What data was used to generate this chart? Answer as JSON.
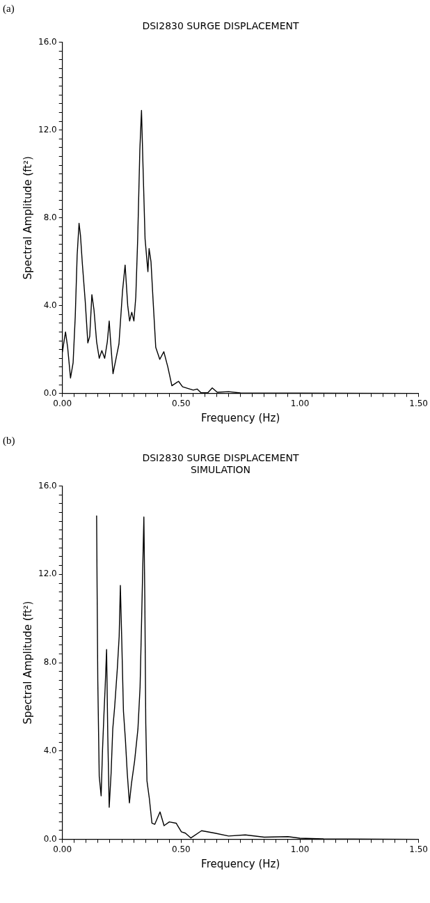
{
  "chart_data": [
    {
      "type": "line",
      "title": "DSI2830 SURGE DISPLACEMENT",
      "xlabel": "Frequency (Hz)",
      "ylabel": "Spectral Amplitude (ft²)",
      "annotations": [
        "(a)"
      ],
      "x": [
        0,
        0.013,
        0.022,
        0.034,
        0.045,
        0.054,
        0.062,
        0.07,
        0.076,
        0.084,
        0.096,
        0.107,
        0.115,
        0.124,
        0.133,
        0.144,
        0.155,
        0.166,
        0.178,
        0.189,
        0.197,
        0.202,
        0.213,
        0.225,
        0.238,
        0.253,
        0.264,
        0.275,
        0.283,
        0.292,
        0.301,
        0.309,
        0.317,
        0.326,
        0.333,
        0.339,
        0.348,
        0.36,
        0.365,
        0.373,
        0.382,
        0.393,
        0.41,
        0.427,
        0.444,
        0.461,
        0.489,
        0.506,
        0.551,
        0.567,
        0.584,
        0.612,
        0.631,
        0.652,
        0.7,
        0.75,
        1.0,
        1.5
      ],
      "series": [
        {
          "color": "#000000",
          "values": [
            1.9,
            2.8,
            2.1,
            0.7,
            1.4,
            3.5,
            6.3,
            7.75,
            7.2,
            5.9,
            4.2,
            2.3,
            2.6,
            4.5,
            3.8,
            2.35,
            1.6,
            1.95,
            1.6,
            2.35,
            3.3,
            2.5,
            0.9,
            1.55,
            2.25,
            4.65,
            5.85,
            4.0,
            3.3,
            3.7,
            3.3,
            4.4,
            7.05,
            11.1,
            12.9,
            10.5,
            7.05,
            5.55,
            6.6,
            6.0,
            4.2,
            2.1,
            1.55,
            1.9,
            1.2,
            0.35,
            0.55,
            0.3,
            0.15,
            0.2,
            0.03,
            0.03,
            0.25,
            0.05,
            0.08,
            0.02,
            0.01,
            0
          ]
        }
      ],
      "xlim": [
        0,
        1.5
      ],
      "ylim": [
        0,
        16
      ],
      "xticks": [
        {
          "value": 0,
          "label": "0.00"
        },
        {
          "value": 0.05,
          "label": null
        },
        {
          "value": 0.1,
          "label": null
        },
        {
          "value": 0.15,
          "label": null
        },
        {
          "value": 0.2,
          "label": null
        },
        {
          "value": 0.25,
          "label": null
        },
        {
          "value": 0.3,
          "label": null
        },
        {
          "value": 0.35,
          "label": null
        },
        {
          "value": 0.4,
          "label": null
        },
        {
          "value": 0.45,
          "label": null
        },
        {
          "value": 0.5,
          "label": "0.50"
        },
        {
          "value": 0.55,
          "label": null
        },
        {
          "value": 0.6,
          "label": null
        },
        {
          "value": 0.65,
          "label": null
        },
        {
          "value": 0.7,
          "label": null
        },
        {
          "value": 0.75,
          "label": null
        },
        {
          "value": 0.8,
          "label": null
        },
        {
          "value": 0.85,
          "label": null
        },
        {
          "value": 0.9,
          "label": null
        },
        {
          "value": 0.95,
          "label": null
        },
        {
          "value": 1,
          "label": "1.00"
        },
        {
          "value": 1.05,
          "label": null
        },
        {
          "value": 1.1,
          "label": null
        },
        {
          "value": 1.15,
          "label": null
        },
        {
          "value": 1.2,
          "label": null
        },
        {
          "value": 1.25,
          "label": null
        },
        {
          "value": 1.3,
          "label": null
        },
        {
          "value": 1.35,
          "label": null
        },
        {
          "value": 1.4,
          "label": null
        },
        {
          "value": 1.45,
          "label": null
        },
        {
          "value": 1.5,
          "label": "1.50"
        }
      ],
      "yticks": [
        {
          "value": 0,
          "label": "0.0"
        },
        {
          "value": 0.4,
          "label": null
        },
        {
          "value": 0.8,
          "label": null
        },
        {
          "value": 1.2,
          "label": null
        },
        {
          "value": 1.6,
          "label": null
        },
        {
          "value": 2,
          "label": null
        },
        {
          "value": 2.4,
          "label": null
        },
        {
          "value": 2.8,
          "label": null
        },
        {
          "value": 3.2,
          "label": null
        },
        {
          "value": 3.6,
          "label": null
        },
        {
          "value": 4,
          "label": "4.0"
        },
        {
          "value": 4.4,
          "label": null
        },
        {
          "value": 4.8,
          "label": null
        },
        {
          "value": 5.2,
          "label": null
        },
        {
          "value": 5.6,
          "label": null
        },
        {
          "value": 6,
          "label": null
        },
        {
          "value": 6.4,
          "label": null
        },
        {
          "value": 6.8,
          "label": null
        },
        {
          "value": 7.2,
          "label": null
        },
        {
          "value": 7.6,
          "label": null
        },
        {
          "value": 8,
          "label": "8.0"
        },
        {
          "value": 8.4,
          "label": null
        },
        {
          "value": 8.8,
          "label": null
        },
        {
          "value": 9.2,
          "label": null
        },
        {
          "value": 9.6,
          "label": null
        },
        {
          "value": 10,
          "label": null
        },
        {
          "value": 10.4,
          "label": null
        },
        {
          "value": 10.8,
          "label": null
        },
        {
          "value": 11.2,
          "label": null
        },
        {
          "value": 11.6,
          "label": null
        },
        {
          "value": 12,
          "label": "12.0"
        },
        {
          "value": 12.4,
          "label": null
        },
        {
          "value": 12.8,
          "label": null
        },
        {
          "value": 13.2,
          "label": null
        },
        {
          "value": 13.6,
          "label": null
        },
        {
          "value": 14,
          "label": null
        },
        {
          "value": 14.4,
          "label": null
        },
        {
          "value": 14.8,
          "label": null
        },
        {
          "value": 15.2,
          "label": null
        },
        {
          "value": 15.6,
          "label": null
        },
        {
          "value": 16,
          "label": "16.0"
        }
      ],
      "grid": false,
      "legend": false,
      "marker": "none",
      "line_style": "solid"
    },
    {
      "type": "line",
      "title": "DSI2830 SURGE DISPLACEMENT",
      "subtitle": "SIMULATION",
      "xlabel": "Frequency (Hz)",
      "ylabel": "Spectral Amplitude (ft²)",
      "annotations": [
        "(b)"
      ],
      "x": [
        0.144,
        0.146,
        0.149,
        0.155,
        0.163,
        0.169,
        0.175,
        0.18,
        0.186,
        0.191,
        0.197,
        0.205,
        0.212,
        0.22,
        0.231,
        0.239,
        0.244,
        0.25,
        0.257,
        0.265,
        0.273,
        0.282,
        0.291,
        0.304,
        0.318,
        0.327,
        0.334,
        0.343,
        0.347,
        0.351,
        0.356,
        0.366,
        0.377,
        0.389,
        0.411,
        0.428,
        0.45,
        0.479,
        0.501,
        0.518,
        0.541,
        0.586,
        0.642,
        0.7,
        0.77,
        0.85,
        0.95,
        1.0,
        1.1,
        1.5
      ],
      "series": [
        {
          "color": "#000000",
          "values": [
            14.65,
            11.4,
            7.15,
            2.85,
            1.97,
            4.1,
            5.7,
            6.9,
            8.6,
            4.7,
            1.45,
            3.0,
            5.0,
            6.0,
            7.7,
            9.2,
            11.5,
            8.95,
            5.8,
            4.55,
            3.0,
            1.65,
            2.55,
            3.55,
            5.0,
            6.9,
            10.2,
            14.6,
            10.9,
            5.25,
            2.65,
            1.85,
            0.73,
            0.68,
            1.24,
            0.62,
            0.79,
            0.73,
            0.34,
            0.28,
            0.06,
            0.39,
            0.28,
            0.15,
            0.2,
            0.1,
            0.12,
            0.05,
            0.02,
            0
          ]
        }
      ],
      "xlim": [
        0,
        1.5
      ],
      "ylim": [
        0,
        16
      ],
      "xticks": [
        {
          "value": 0,
          "label": "0.00"
        },
        {
          "value": 0.05,
          "label": null
        },
        {
          "value": 0.1,
          "label": null
        },
        {
          "value": 0.15,
          "label": null
        },
        {
          "value": 0.2,
          "label": null
        },
        {
          "value": 0.25,
          "label": null
        },
        {
          "value": 0.3,
          "label": null
        },
        {
          "value": 0.35,
          "label": null
        },
        {
          "value": 0.4,
          "label": null
        },
        {
          "value": 0.45,
          "label": null
        },
        {
          "value": 0.5,
          "label": "0.50"
        },
        {
          "value": 0.55,
          "label": null
        },
        {
          "value": 0.6,
          "label": null
        },
        {
          "value": 0.65,
          "label": null
        },
        {
          "value": 0.7,
          "label": null
        },
        {
          "value": 0.75,
          "label": null
        },
        {
          "value": 0.8,
          "label": null
        },
        {
          "value": 0.85,
          "label": null
        },
        {
          "value": 0.9,
          "label": null
        },
        {
          "value": 0.95,
          "label": null
        },
        {
          "value": 1,
          "label": "1.00"
        },
        {
          "value": 1.05,
          "label": null
        },
        {
          "value": 1.1,
          "label": null
        },
        {
          "value": 1.15,
          "label": null
        },
        {
          "value": 1.2,
          "label": null
        },
        {
          "value": 1.25,
          "label": null
        },
        {
          "value": 1.3,
          "label": null
        },
        {
          "value": 1.35,
          "label": null
        },
        {
          "value": 1.4,
          "label": null
        },
        {
          "value": 1.45,
          "label": null
        },
        {
          "value": 1.5,
          "label": "1.50"
        }
      ],
      "yticks": [
        {
          "value": 0,
          "label": "0.0"
        },
        {
          "value": 0.4,
          "label": null
        },
        {
          "value": 0.8,
          "label": null
        },
        {
          "value": 1.2,
          "label": null
        },
        {
          "value": 1.6,
          "label": null
        },
        {
          "value": 2,
          "label": null
        },
        {
          "value": 2.4,
          "label": null
        },
        {
          "value": 2.8,
          "label": null
        },
        {
          "value": 3.2,
          "label": null
        },
        {
          "value": 3.6,
          "label": null
        },
        {
          "value": 4,
          "label": "4.0"
        },
        {
          "value": 4.4,
          "label": null
        },
        {
          "value": 4.8,
          "label": null
        },
        {
          "value": 5.2,
          "label": null
        },
        {
          "value": 5.6,
          "label": null
        },
        {
          "value": 6,
          "label": null
        },
        {
          "value": 6.4,
          "label": null
        },
        {
          "value": 6.8,
          "label": null
        },
        {
          "value": 7.2,
          "label": null
        },
        {
          "value": 7.6,
          "label": null
        },
        {
          "value": 8,
          "label": "8.0"
        },
        {
          "value": 8.4,
          "label": null
        },
        {
          "value": 8.8,
          "label": null
        },
        {
          "value": 9.2,
          "label": null
        },
        {
          "value": 9.6,
          "label": null
        },
        {
          "value": 10,
          "label": null
        },
        {
          "value": 10.4,
          "label": null
        },
        {
          "value": 10.8,
          "label": null
        },
        {
          "value": 11.2,
          "label": null
        },
        {
          "value": 11.6,
          "label": null
        },
        {
          "value": 12,
          "label": "12.0"
        },
        {
          "value": 12.4,
          "label": null
        },
        {
          "value": 12.8,
          "label": null
        },
        {
          "value": 13.2,
          "label": null
        },
        {
          "value": 13.6,
          "label": null
        },
        {
          "value": 14,
          "label": null
        },
        {
          "value": 14.4,
          "label": null
        },
        {
          "value": 14.8,
          "label": null
        },
        {
          "value": 15.2,
          "label": null
        },
        {
          "value": 15.6,
          "label": null
        },
        {
          "value": 16,
          "label": "16.0"
        }
      ],
      "grid": false,
      "legend": false,
      "marker": "none",
      "line_style": "solid"
    }
  ]
}
